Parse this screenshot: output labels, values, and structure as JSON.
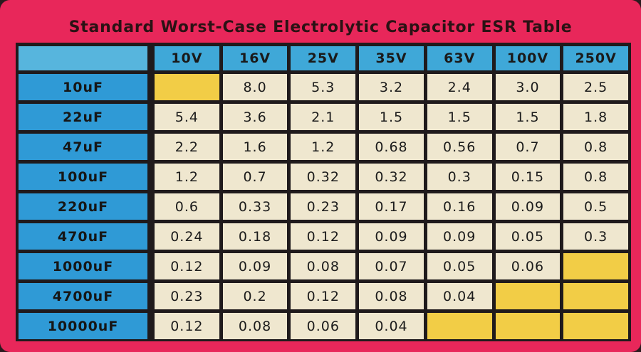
{
  "title": "Standard Worst-Case Electrolytic Capacitor ESR Table",
  "voltages": [
    "10V",
    "16V",
    "25V",
    "35V",
    "63V",
    "100V",
    "250V"
  ],
  "rows": [
    {
      "cap": "10uF",
      "values": [
        "",
        "8.0",
        "5.3",
        "3.2",
        "2.4",
        "3.0",
        "2.5"
      ]
    },
    {
      "cap": "22uF",
      "values": [
        "5.4",
        "3.6",
        "2.1",
        "1.5",
        "1.5",
        "1.5",
        "1.8"
      ]
    },
    {
      "cap": "47uF",
      "values": [
        "2.2",
        "1.6",
        "1.2",
        "0.68",
        "0.56",
        "0.7",
        "0.8"
      ]
    },
    {
      "cap": "100uF",
      "values": [
        "1.2",
        "0.7",
        "0.32",
        "0.32",
        "0.3",
        "0.15",
        "0.8"
      ]
    },
    {
      "cap": "220uF",
      "values": [
        "0.6",
        "0.33",
        "0.23",
        "0.17",
        "0.16",
        "0.09",
        "0.5"
      ]
    },
    {
      "cap": "470uF",
      "values": [
        "0.24",
        "0.18",
        "0.12",
        "0.09",
        "0.09",
        "0.05",
        "0.3"
      ]
    },
    {
      "cap": "1000uF",
      "values": [
        "0.12",
        "0.09",
        "0.08",
        "0.07",
        "0.05",
        "0.06",
        ""
      ]
    },
    {
      "cap": "4700uF",
      "values": [
        "0.23",
        "0.2",
        "0.12",
        "0.08",
        "0.04",
        "",
        ""
      ]
    },
    {
      "cap": "10000uF",
      "values": [
        "0.12",
        "0.08",
        "0.06",
        "0.04",
        "",
        "",
        ""
      ]
    }
  ],
  "colors": {
    "frame": "#e8275a",
    "header_blue": "#3fa8d8",
    "row_header_blue": "#2f9ad6",
    "cell_cream": "#efe7cf",
    "empty_yellow": "#f2cd46"
  }
}
